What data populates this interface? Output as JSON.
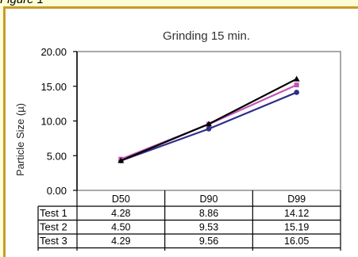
{
  "page_label": "Figure 1",
  "chart_data": {
    "type": "line",
    "title": "Grinding 15 min.",
    "xlabel": "",
    "ylabel": "Particle Size (µ)",
    "categories": [
      "D50",
      "D90",
      "D99"
    ],
    "ylim": [
      0,
      20
    ],
    "yticks": [
      "0.00",
      "5.00",
      "10.00",
      "15.00",
      "20.00"
    ],
    "grid": false,
    "legend": "data table below plot",
    "series": [
      {
        "name": "Test 1",
        "values": [
          4.28,
          8.86,
          14.12
        ],
        "display": [
          "4.28",
          "8.86",
          "14.12"
        ],
        "color": "#2E2E8A"
      },
      {
        "name": "Test 2",
        "values": [
          4.5,
          9.53,
          15.19
        ],
        "display": [
          "4.50",
          "9.53",
          "15.19"
        ],
        "color": "#C455B5"
      },
      {
        "name": "Test 3",
        "values": [
          4.29,
          9.56,
          16.05
        ],
        "display": [
          "4.29",
          "9.56",
          "16.05"
        ],
        "color": "#000000"
      }
    ]
  }
}
